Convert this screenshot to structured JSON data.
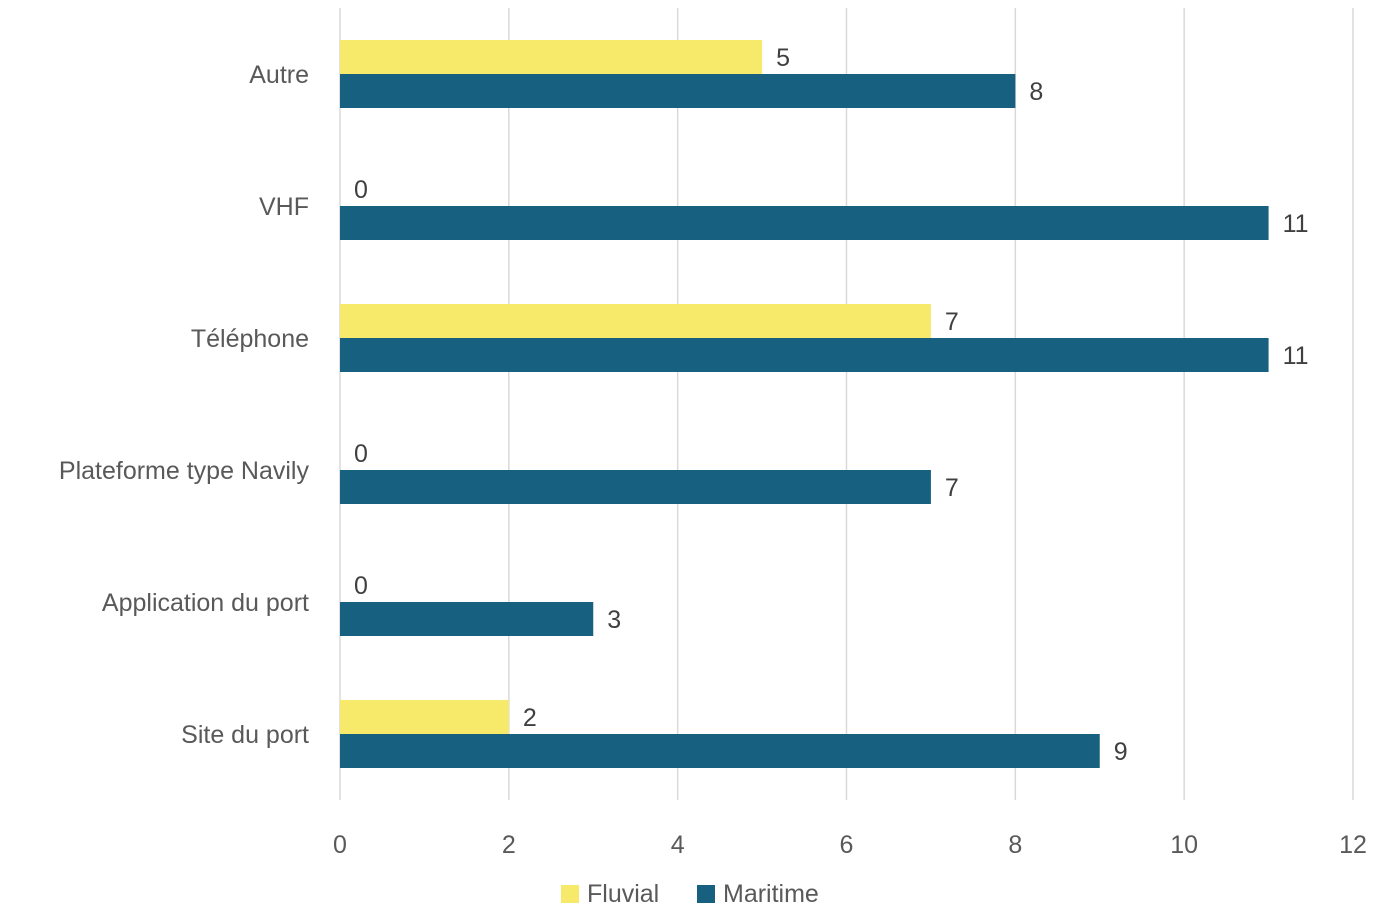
{
  "chart_data": {
    "type": "bar",
    "orientation": "horizontal",
    "categories": [
      "Site du port",
      "Application du port",
      "Plateforme type Navily",
      "Téléphone",
      "VHF",
      "Autre"
    ],
    "series": [
      {
        "name": "Fluvial",
        "values": [
          2,
          0,
          0,
          7,
          0,
          5
        ],
        "color": "#F7EA6B"
      },
      {
        "name": "Maritime",
        "values": [
          9,
          3,
          7,
          11,
          11,
          8
        ],
        "color": "#17607F"
      }
    ],
    "xlim": [
      0,
      12
    ],
    "xticks": [
      0,
      2,
      4,
      6,
      8,
      10,
      12
    ],
    "grid": "vertical",
    "legend": "bottom",
    "title": "",
    "xlabel": "",
    "ylabel": ""
  }
}
